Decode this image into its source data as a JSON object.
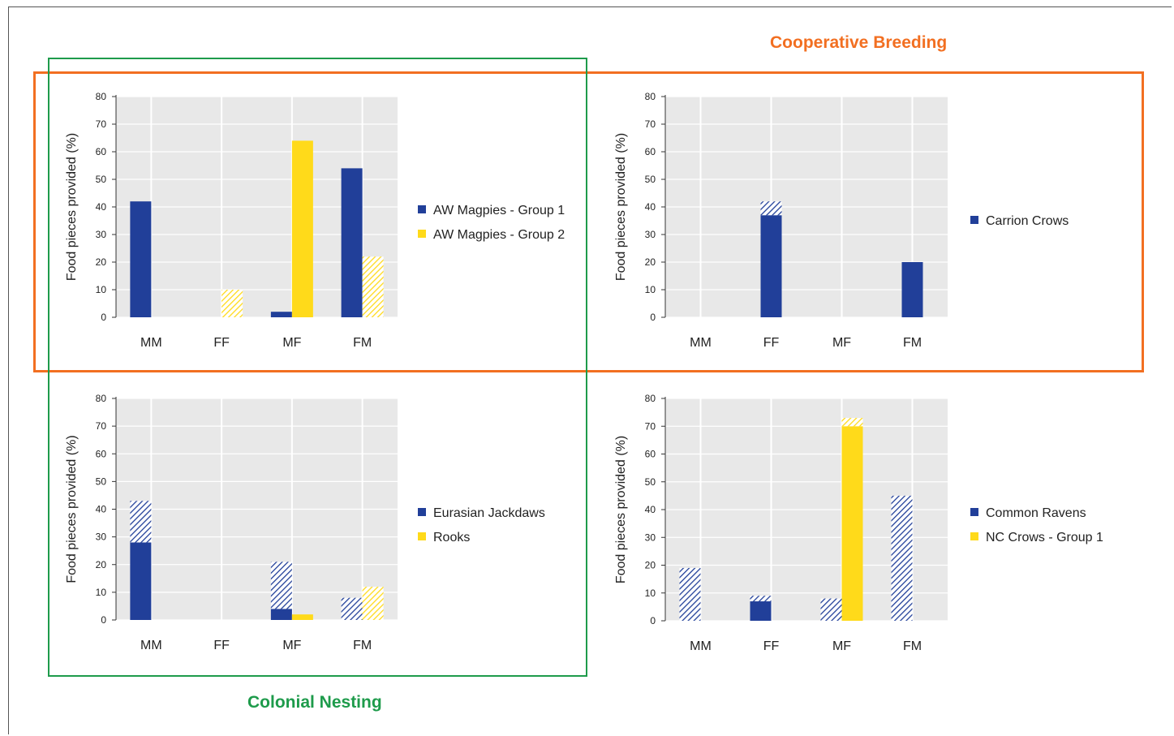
{
  "figure": {
    "colors": {
      "blue": "#213f99",
      "yellow": "#ffda1a",
      "grid_bg": "#e8e8e8",
      "cooperative": "#f26f21",
      "colonial": "#1e9b4b"
    },
    "annotations": {
      "cooperative_breeding": "Cooperative Breeding",
      "colonial_nesting": "Colonial Nesting"
    }
  },
  "chart_data": [
    {
      "type": "bar",
      "categories": [
        "MM",
        "FF",
        "MF",
        "FM"
      ],
      "ylabel": "Food pieces provided (%)",
      "ylim": [
        0,
        80
      ],
      "yticks": [
        0,
        10,
        20,
        30,
        40,
        50,
        60,
        70,
        80
      ],
      "grid": true,
      "legend_position": "right",
      "series": [
        {
          "name": "AW Magpies - Group 1",
          "color": "#213f99",
          "solid": [
            42,
            0,
            2,
            54
          ],
          "hatched": [
            0,
            0,
            0,
            0
          ]
        },
        {
          "name": "AW Magpies - Group 2",
          "color": "#ffda1a",
          "solid": [
            0,
            0,
            64,
            0
          ],
          "hatched": [
            0,
            10,
            0,
            22
          ]
        }
      ]
    },
    {
      "type": "bar",
      "categories": [
        "MM",
        "FF",
        "MF",
        "FM"
      ],
      "ylabel": "Food pieces provided (%)",
      "ylim": [
        0,
        80
      ],
      "yticks": [
        0,
        10,
        20,
        30,
        40,
        50,
        60,
        70,
        80
      ],
      "grid": true,
      "legend_position": "right",
      "series": [
        {
          "name": "Carrion Crows",
          "color": "#213f99",
          "solid": [
            0,
            37,
            0,
            20
          ],
          "hatched": [
            0,
            5,
            0,
            0
          ]
        }
      ]
    },
    {
      "type": "bar",
      "categories": [
        "MM",
        "FF",
        "MF",
        "FM"
      ],
      "ylabel": "Food pieces provided (%)",
      "ylim": [
        0,
        80
      ],
      "yticks": [
        0,
        10,
        20,
        30,
        40,
        50,
        60,
        70,
        80
      ],
      "grid": true,
      "legend_position": "right",
      "series": [
        {
          "name": "Eurasian Jackdaws",
          "color": "#213f99",
          "solid": [
            28,
            0,
            4,
            0
          ],
          "hatched": [
            15,
            0,
            17,
            8
          ]
        },
        {
          "name": "Rooks",
          "color": "#ffda1a",
          "solid": [
            0,
            0,
            2,
            0
          ],
          "hatched": [
            0,
            0,
            0,
            12
          ]
        }
      ]
    },
    {
      "type": "bar",
      "categories": [
        "MM",
        "FF",
        "MF",
        "FM"
      ],
      "ylabel": "Food pieces provided (%)",
      "ylim": [
        0,
        80
      ],
      "yticks": [
        0,
        10,
        20,
        30,
        40,
        50,
        60,
        70,
        80
      ],
      "grid": true,
      "legend_position": "right",
      "series": [
        {
          "name": "Common Ravens",
          "color": "#213f99",
          "solid": [
            0,
            7,
            0,
            0
          ],
          "hatched": [
            19,
            2,
            8,
            45
          ]
        },
        {
          "name": "NC Crows - Group 1",
          "color": "#ffda1a",
          "solid": [
            0,
            0,
            70,
            0
          ],
          "hatched": [
            0,
            0,
            3,
            0
          ]
        }
      ]
    }
  ]
}
